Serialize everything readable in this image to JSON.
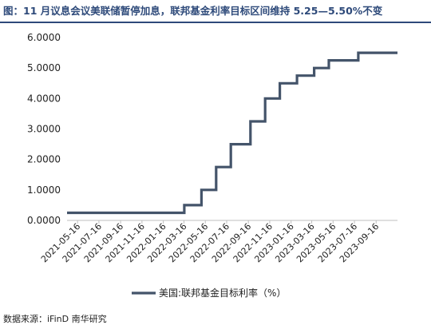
{
  "header": {
    "title": "图：11 月议息会议美联储暂停加息，联邦基金利率目标区间维持 5.25—5.50%不变"
  },
  "footer": {
    "source": "数据来源：iFinD 南华研究"
  },
  "colors": {
    "title": "#2e4a7a",
    "series": "#44546a",
    "axis": "#bfbfbf"
  },
  "chart_data": {
    "type": "line",
    "step": true,
    "title": "",
    "xlabel": "",
    "ylabel": "",
    "ylim": [
      0,
      6
    ],
    "y_ticks": [
      "0.0000",
      "1.0000",
      "2.0000",
      "3.0000",
      "4.0000",
      "5.0000",
      "6.0000"
    ],
    "x_ticks": [
      "2021-05-16",
      "2021-07-16",
      "2021-09-16",
      "2021-11-16",
      "2022-01-16",
      "2022-03-16",
      "2022-05-16",
      "2022-07-16",
      "2022-09-16",
      "2022-11-16",
      "2023-01-16",
      "2023-03-16",
      "2023-05-16",
      "2023-07-16",
      "2023-09-16"
    ],
    "x_range": [
      "2021-04-16",
      "2023-11-16"
    ],
    "grid": false,
    "legend_position": "bottom-center",
    "series": [
      {
        "name": "美国:联邦基金目标利率（%）",
        "points": [
          [
            "2021-04-16",
            0.25
          ],
          [
            "2022-03-17",
            0.25
          ],
          [
            "2022-03-17",
            0.5
          ],
          [
            "2022-05-05",
            0.5
          ],
          [
            "2022-05-05",
            1.0
          ],
          [
            "2022-06-16",
            1.0
          ],
          [
            "2022-06-16",
            1.75
          ],
          [
            "2022-07-28",
            1.75
          ],
          [
            "2022-07-28",
            2.5
          ],
          [
            "2022-09-22",
            2.5
          ],
          [
            "2022-09-22",
            3.25
          ],
          [
            "2022-11-03",
            3.25
          ],
          [
            "2022-11-03",
            4.0
          ],
          [
            "2022-12-15",
            4.0
          ],
          [
            "2022-12-15",
            4.5
          ],
          [
            "2023-02-02",
            4.5
          ],
          [
            "2023-02-02",
            4.75
          ],
          [
            "2023-03-23",
            4.75
          ],
          [
            "2023-03-23",
            5.0
          ],
          [
            "2023-05-04",
            5.0
          ],
          [
            "2023-05-04",
            5.25
          ],
          [
            "2023-07-27",
            5.25
          ],
          [
            "2023-07-27",
            5.5
          ],
          [
            "2023-11-16",
            5.5
          ]
        ]
      }
    ]
  }
}
